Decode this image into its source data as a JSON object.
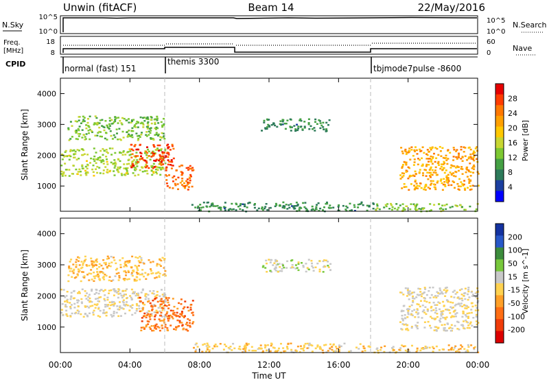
{
  "header": {
    "title": "Unwin (fitACF)",
    "beam": "Beam 14",
    "date": "22/May/2016"
  },
  "panels": {
    "nsky": {
      "label": "N.Sky",
      "ticks": [
        "10^5",
        "10^0"
      ],
      "right_ticks": [
        "10^5",
        "10^0"
      ],
      "right_label": "N.Search"
    },
    "freq": {
      "label_line1": "Freq.",
      "label_line2": "[MHz]",
      "ticks": [
        "18",
        "8"
      ],
      "right_ticks": [
        "60",
        "0"
      ],
      "right_label": "Nave"
    },
    "cpid": {
      "label": "CPID",
      "segments": [
        {
          "text": "normal (fast) 151",
          "start": 0.0
        },
        {
          "text": "themis 3300",
          "start": 6.0
        },
        {
          "text": "tbjmode7pulse -8600",
          "start": 18.0
        }
      ]
    }
  },
  "colors": {
    "power_scale": [
      "#0000ff",
      "#1c3fa0",
      "#2d7a5a",
      "#44a044",
      "#7dc832",
      "#c8d632",
      "#ffc800",
      "#ffa000",
      "#ff7800",
      "#ff3c00",
      "#e60000"
    ],
    "velocity_scale": [
      "#1432a0",
      "#2858c8",
      "#3c8c3c",
      "#78c83c",
      "#c8c8c8",
      "#ffd250",
      "#ffa028",
      "#ff6e14",
      "#f03c0a",
      "#dc0000"
    ]
  },
  "chart_data": [
    {
      "type": "heatmap",
      "name": "power",
      "xlabel": "",
      "ylabel": "Slant Range [km]",
      "xlim": [
        0,
        24
      ],
      "ylim": [
        180,
        4500
      ],
      "yticks": [
        1000,
        2000,
        3000,
        4000
      ],
      "colorbar": {
        "label": "Power [dB]",
        "ticks": [
          "28",
          "24",
          "20",
          "16",
          "12",
          "8",
          "4"
        ],
        "range": [
          0,
          30
        ]
      },
      "echo_regions": [
        {
          "t0": 0.0,
          "t1": 6.0,
          "r0": 1350,
          "r1": 2250,
          "value": 14
        },
        {
          "t0": 4.0,
          "t1": 6.5,
          "r0": 1600,
          "r1": 2400,
          "value": 26
        },
        {
          "t0": 6.0,
          "t1": 7.6,
          "r0": 900,
          "r1": 1700,
          "value": 24
        },
        {
          "t0": 0.4,
          "t1": 6.0,
          "r0": 2500,
          "r1": 3300,
          "value": 12
        },
        {
          "t0": 7.5,
          "t1": 18.0,
          "r0": 200,
          "r1": 500,
          "value": 8
        },
        {
          "t0": 11.5,
          "t1": 15.5,
          "r0": 2800,
          "r1": 3200,
          "value": 8
        },
        {
          "t0": 18.0,
          "t1": 24.0,
          "r0": 200,
          "r1": 450,
          "value": 12
        },
        {
          "t0": 19.5,
          "t1": 24.0,
          "r0": 900,
          "r1": 2300,
          "value": 20
        }
      ]
    },
    {
      "type": "heatmap",
      "name": "velocity",
      "xlabel": "Time UT",
      "ylabel": "Slant Range [km]",
      "xlim": [
        0,
        24
      ],
      "ylim": [
        180,
        4500
      ],
      "yticks": [
        1000,
        2000,
        3000,
        4000
      ],
      "xticks": [
        "00:00",
        "04:00",
        "08:00",
        "12:00",
        "16:00",
        "20:00",
        "00:00"
      ],
      "colorbar": {
        "label": "Velocity [m s^-1]",
        "ticks": [
          "200",
          "100",
          "50",
          "15",
          "-15",
          "-50",
          "-100",
          "-200"
        ],
        "range": [
          -250,
          250
        ]
      },
      "echo_regions": [
        {
          "t0": 0.0,
          "t1": 6.0,
          "r0": 1350,
          "r1": 2250,
          "value": 0
        },
        {
          "t0": 4.5,
          "t1": 7.6,
          "r0": 900,
          "r1": 2000,
          "value": -120
        },
        {
          "t0": 0.4,
          "t1": 6.0,
          "r0": 2500,
          "r1": 3300,
          "value": -40
        },
        {
          "t0": 7.5,
          "t1": 18.0,
          "r0": 200,
          "r1": 500,
          "value": -30
        },
        {
          "t0": 11.5,
          "t1": 15.5,
          "r0": 2800,
          "r1": 3200,
          "value": 30
        },
        {
          "t0": 18.0,
          "t1": 24.0,
          "r0": 200,
          "r1": 450,
          "value": -30
        },
        {
          "t0": 19.5,
          "t1": 24.0,
          "r0": 900,
          "r1": 2300,
          "value": 5
        }
      ]
    }
  ]
}
